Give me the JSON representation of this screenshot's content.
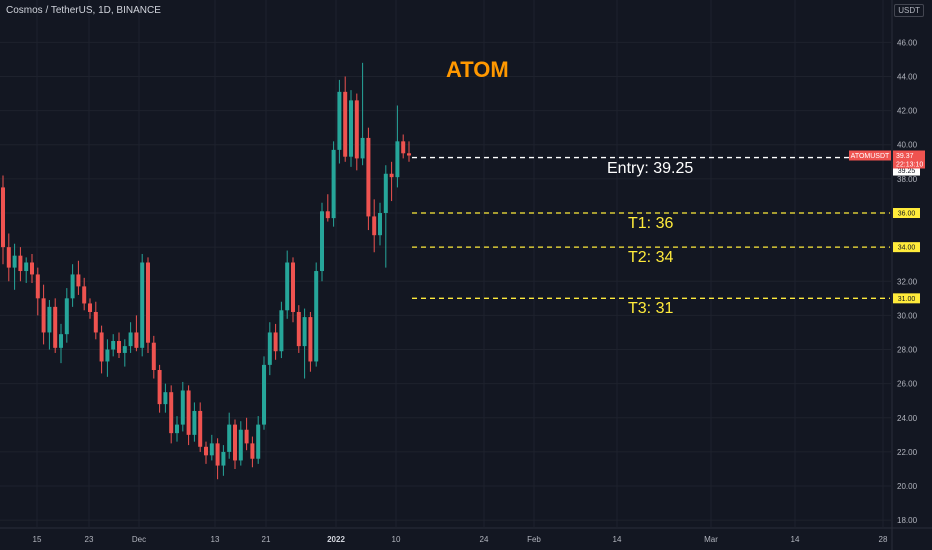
{
  "header": {
    "symbol": "Cosmos / TetherUS, 1D, BINANCE",
    "currency": "USDT"
  },
  "chart_data": {
    "type": "candlestick",
    "title": "ATOM",
    "y_ticks": [
      "18.00",
      "20.00",
      "22.00",
      "24.00",
      "26.00",
      "28.00",
      "30.00",
      "32.00",
      "34.00",
      "36.00",
      "38.00",
      "40.00",
      "42.00",
      "44.00",
      "46.00"
    ],
    "ylim": [
      17.6,
      46.9
    ],
    "x_ticks": [
      {
        "label": "15",
        "bold": false
      },
      {
        "label": "23",
        "bold": false
      },
      {
        "label": "Dec",
        "bold": false
      },
      {
        "label": "13",
        "bold": false
      },
      {
        "label": "21",
        "bold": false
      },
      {
        "label": "2022",
        "bold": true
      },
      {
        "label": "10",
        "bold": false
      },
      {
        "label": "24",
        "bold": false
      },
      {
        "label": "Feb",
        "bold": false
      },
      {
        "label": "14",
        "bold": false
      },
      {
        "label": "Mar",
        "bold": false
      },
      {
        "label": "14",
        "bold": false
      },
      {
        "label": "28",
        "bold": false
      }
    ],
    "candles": [
      [
        37.5,
        38.2,
        33.0,
        34.0
      ],
      [
        34.0,
        34.8,
        32.0,
        32.8
      ],
      [
        32.8,
        34.2,
        31.5,
        33.5
      ],
      [
        33.5,
        34.0,
        32.0,
        32.6
      ],
      [
        32.6,
        33.4,
        31.9,
        33.1
      ],
      [
        33.1,
        33.6,
        31.9,
        32.4
      ],
      [
        32.4,
        32.8,
        30.0,
        31.0
      ],
      [
        31.0,
        31.8,
        28.3,
        29.0
      ],
      [
        29.0,
        30.9,
        28.0,
        30.5
      ],
      [
        30.5,
        31.0,
        27.8,
        28.1
      ],
      [
        28.1,
        29.5,
        27.2,
        28.9
      ],
      [
        28.9,
        31.6,
        28.4,
        31.0
      ],
      [
        31.0,
        33.0,
        30.5,
        32.4
      ],
      [
        32.4,
        33.2,
        31.2,
        31.7
      ],
      [
        31.7,
        32.2,
        30.3,
        30.7
      ],
      [
        30.7,
        31.0,
        29.8,
        30.2
      ],
      [
        30.2,
        30.8,
        28.6,
        29.0
      ],
      [
        29.0,
        29.4,
        26.6,
        27.3
      ],
      [
        27.3,
        28.6,
        26.4,
        28.0
      ],
      [
        28.0,
        28.9,
        27.6,
        28.5
      ],
      [
        28.5,
        29.0,
        27.5,
        27.8
      ],
      [
        27.8,
        28.6,
        27.0,
        28.2
      ],
      [
        28.2,
        29.6,
        27.8,
        29.0
      ],
      [
        29.0,
        30.0,
        27.9,
        28.1
      ],
      [
        28.1,
        33.6,
        27.6,
        33.1
      ],
      [
        33.1,
        33.4,
        27.8,
        28.4
      ],
      [
        28.4,
        28.8,
        26.3,
        26.8
      ],
      [
        26.8,
        27.1,
        24.3,
        24.8
      ],
      [
        24.8,
        26.0,
        24.3,
        25.5
      ],
      [
        25.5,
        25.9,
        22.5,
        23.1
      ],
      [
        23.1,
        24.1,
        22.6,
        23.6
      ],
      [
        23.6,
        26.1,
        23.2,
        25.6
      ],
      [
        25.6,
        25.9,
        22.4,
        23.0
      ],
      [
        23.0,
        24.9,
        22.6,
        24.4
      ],
      [
        24.4,
        24.9,
        22.0,
        22.3
      ],
      [
        22.3,
        22.6,
        21.3,
        21.8
      ],
      [
        21.8,
        23.0,
        21.5,
        22.5
      ],
      [
        22.5,
        22.8,
        20.4,
        21.2
      ],
      [
        21.2,
        22.4,
        20.6,
        22.0
      ],
      [
        22.0,
        24.3,
        21.6,
        23.6
      ],
      [
        23.6,
        23.9,
        21.0,
        21.5
      ],
      [
        21.5,
        23.8,
        21.2,
        23.3
      ],
      [
        23.3,
        24.0,
        22.1,
        22.5
      ],
      [
        22.5,
        22.9,
        21.1,
        21.6
      ],
      [
        21.6,
        24.1,
        21.3,
        23.6
      ],
      [
        23.6,
        27.6,
        23.3,
        27.1
      ],
      [
        27.1,
        29.6,
        26.5,
        29.0
      ],
      [
        29.0,
        29.5,
        27.4,
        27.9
      ],
      [
        27.9,
        30.8,
        27.5,
        30.3
      ],
      [
        30.3,
        33.8,
        29.8,
        33.1
      ],
      [
        33.1,
        33.4,
        29.6,
        30.2
      ],
      [
        30.2,
        30.6,
        27.8,
        28.2
      ],
      [
        28.2,
        30.4,
        26.3,
        29.9
      ],
      [
        29.9,
        30.2,
        26.7,
        27.3
      ],
      [
        27.3,
        33.1,
        27.0,
        32.6
      ],
      [
        32.6,
        36.6,
        32.0,
        36.1
      ],
      [
        36.1,
        37.1,
        35.5,
        35.7
      ],
      [
        35.7,
        40.2,
        35.2,
        39.7
      ],
      [
        39.7,
        43.8,
        38.9,
        43.1
      ],
      [
        43.1,
        44.0,
        39.0,
        39.3
      ],
      [
        39.3,
        43.2,
        38.7,
        42.6
      ],
      [
        42.6,
        43.0,
        38.5,
        39.2
      ],
      [
        39.2,
        44.8,
        38.8,
        40.4
      ],
      [
        40.4,
        41.0,
        35.0,
        35.8
      ],
      [
        35.8,
        36.8,
        33.7,
        34.7
      ],
      [
        34.7,
        36.6,
        34.1,
        36.0
      ],
      [
        36.0,
        38.8,
        32.8,
        38.3
      ],
      [
        38.3,
        39.0,
        36.7,
        38.1
      ],
      [
        38.1,
        42.3,
        37.5,
        40.2
      ],
      [
        40.2,
        40.6,
        39.2,
        39.5
      ],
      [
        39.5,
        40.2,
        39.0,
        39.37
      ]
    ],
    "levels": [
      {
        "label": "Entry: 39.25",
        "value": 39.25,
        "axis_label": "39.25",
        "color": "#ffffff"
      },
      {
        "label": "T1: 36",
        "value": 36.0,
        "axis_label": "36.00",
        "color": "#ffeb3b"
      },
      {
        "label": "T2: 34",
        "value": 34.0,
        "axis_label": "34.00",
        "color": "#ffeb3b"
      },
      {
        "label": "T3: 31",
        "value": 31.0,
        "axis_label": "31.00",
        "color": "#ffeb3b"
      }
    ],
    "last_price": {
      "symbol": "ATOMUSDT",
      "price": "39.37",
      "countdown": "22:13:10",
      "color": "#ef5350"
    },
    "colors": {
      "up": "#26a69a",
      "down": "#ef5350",
      "background": "#131722",
      "grid": "#1e222d"
    },
    "grid": true
  }
}
